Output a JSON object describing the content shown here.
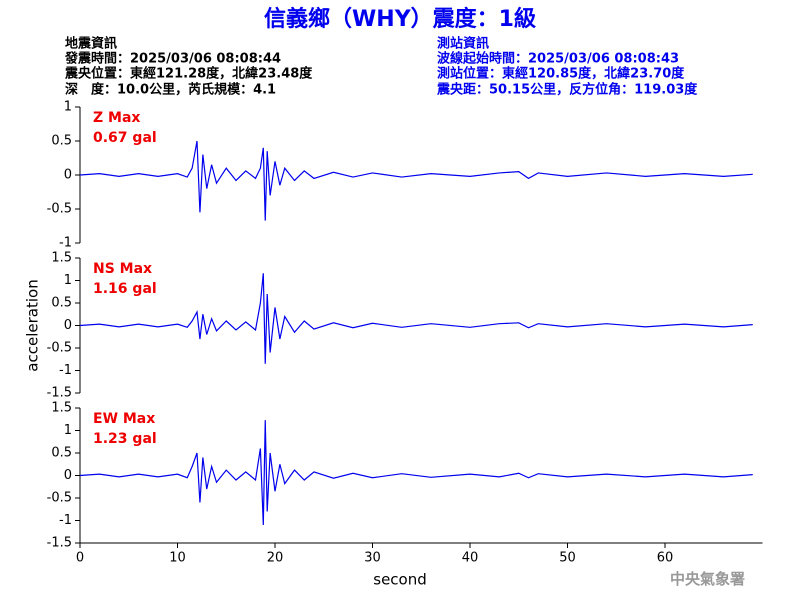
{
  "title": "信義鄉（WHY）震度：1級",
  "header_left": [
    "地震資訊",
    "發震時間：2025/03/06 08:08:44",
    "震央位置：東經121.28度，北緯23.48度",
    "深　度：10.0公里，芮氏規模：4.1"
  ],
  "header_right": [
    "測站資訊",
    "波線起始時間：2025/03/06 08:08:43",
    "測站位置：東經120.85度，北緯23.70度",
    "震央距：50.15公里，反方位角：119.03度"
  ],
  "footer": "中央氣象署",
  "chart_data": [
    {
      "type": "line",
      "title": "Z Max",
      "annotation": "0.67 gal",
      "color": "#0000ee",
      "x": [
        0,
        2,
        4,
        6,
        8,
        10,
        11,
        11.5,
        12,
        12.3,
        12.6,
        13,
        13.5,
        14,
        15,
        16,
        17,
        18,
        18.5,
        18.8,
        19,
        19.2,
        19.5,
        20,
        20.5,
        21,
        22,
        23,
        24,
        26,
        28,
        30,
        33,
        36,
        40,
        43,
        45,
        46,
        47,
        50,
        54,
        58,
        62,
        66,
        69
      ],
      "values": [
        0,
        0.02,
        -0.02,
        0.02,
        -0.02,
        0.02,
        -0.03,
        0.1,
        0.5,
        -0.55,
        0.3,
        -0.2,
        0.15,
        -0.12,
        0.1,
        -0.08,
        0.06,
        -0.05,
        0.1,
        0.4,
        -0.67,
        0.35,
        -0.3,
        0.2,
        -0.15,
        0.1,
        -0.08,
        0.06,
        -0.05,
        0.04,
        -0.03,
        0.03,
        -0.03,
        0.02,
        -0.02,
        0.03,
        0.05,
        -0.05,
        0.03,
        -0.02,
        0.03,
        -0.02,
        0.02,
        -0.02,
        0.01
      ],
      "xlim": [
        0,
        70
      ],
      "ylim": [
        -1,
        1
      ],
      "yticks": [
        -1,
        -0.5,
        0,
        0.5,
        1
      ]
    },
    {
      "type": "line",
      "title": "NS Max",
      "annotation": "1.16 gal",
      "color": "#0000ee",
      "ylabel": "acceleration",
      "x": [
        0,
        2,
        4,
        6,
        8,
        10,
        11,
        11.5,
        12,
        12.3,
        12.6,
        13,
        13.5,
        14,
        15,
        16,
        17,
        18,
        18.5,
        18.8,
        19,
        19.2,
        19.5,
        20,
        20.5,
        21,
        22,
        23,
        24,
        26,
        28,
        30,
        33,
        36,
        40,
        43,
        45,
        46,
        47,
        50,
        54,
        58,
        62,
        66,
        69
      ],
      "values": [
        0,
        0.03,
        -0.03,
        0.03,
        -0.03,
        0.03,
        -0.04,
        0.1,
        0.3,
        -0.3,
        0.25,
        -0.2,
        0.15,
        -0.12,
        0.1,
        -0.1,
        0.08,
        -0.1,
        0.5,
        1.16,
        -0.85,
        0.7,
        -0.6,
        0.4,
        -0.3,
        0.2,
        -0.15,
        0.1,
        -0.08,
        0.06,
        -0.05,
        0.05,
        -0.04,
        0.04,
        -0.04,
        0.04,
        0.06,
        -0.05,
        0.04,
        -0.03,
        0.04,
        -0.03,
        0.03,
        -0.03,
        0.02
      ],
      "xlim": [
        0,
        70
      ],
      "ylim": [
        -1.5,
        1.5
      ],
      "yticks": [
        -1.5,
        -1,
        -0.5,
        0,
        0.5,
        1,
        1.5
      ]
    },
    {
      "type": "line",
      "title": "EW Max",
      "annotation": "1.23 gal",
      "color": "#0000ee",
      "xlabel": "second",
      "x": [
        0,
        2,
        4,
        6,
        8,
        10,
        11,
        11.5,
        12,
        12.3,
        12.6,
        13,
        13.5,
        14,
        15,
        16,
        17,
        18,
        18.5,
        18.8,
        19,
        19.2,
        19.5,
        20,
        20.5,
        21,
        22,
        23,
        24,
        26,
        28,
        30,
        33,
        36,
        40,
        43,
        45,
        46,
        47,
        50,
        54,
        58,
        62,
        66,
        69
      ],
      "values": [
        0,
        0.03,
        -0.03,
        0.03,
        -0.03,
        0.03,
        -0.05,
        0.2,
        0.5,
        -0.6,
        0.4,
        -0.3,
        0.2,
        -0.15,
        0.12,
        -0.1,
        0.08,
        -0.1,
        0.6,
        -1.1,
        1.23,
        -0.8,
        0.5,
        -0.35,
        0.25,
        -0.18,
        0.12,
        -0.1,
        0.08,
        -0.06,
        0.05,
        -0.05,
        0.04,
        -0.04,
        0.03,
        -0.03,
        0.05,
        -0.05,
        0.04,
        -0.03,
        0.03,
        -0.03,
        0.03,
        -0.03,
        0.02
      ],
      "xlim": [
        0,
        70
      ],
      "ylim": [
        -1.5,
        1.5
      ],
      "yticks": [
        -1.5,
        -1,
        -0.5,
        0,
        0.5,
        1,
        1.5
      ],
      "xticks": [
        0,
        10,
        20,
        30,
        40,
        50,
        60
      ]
    }
  ]
}
